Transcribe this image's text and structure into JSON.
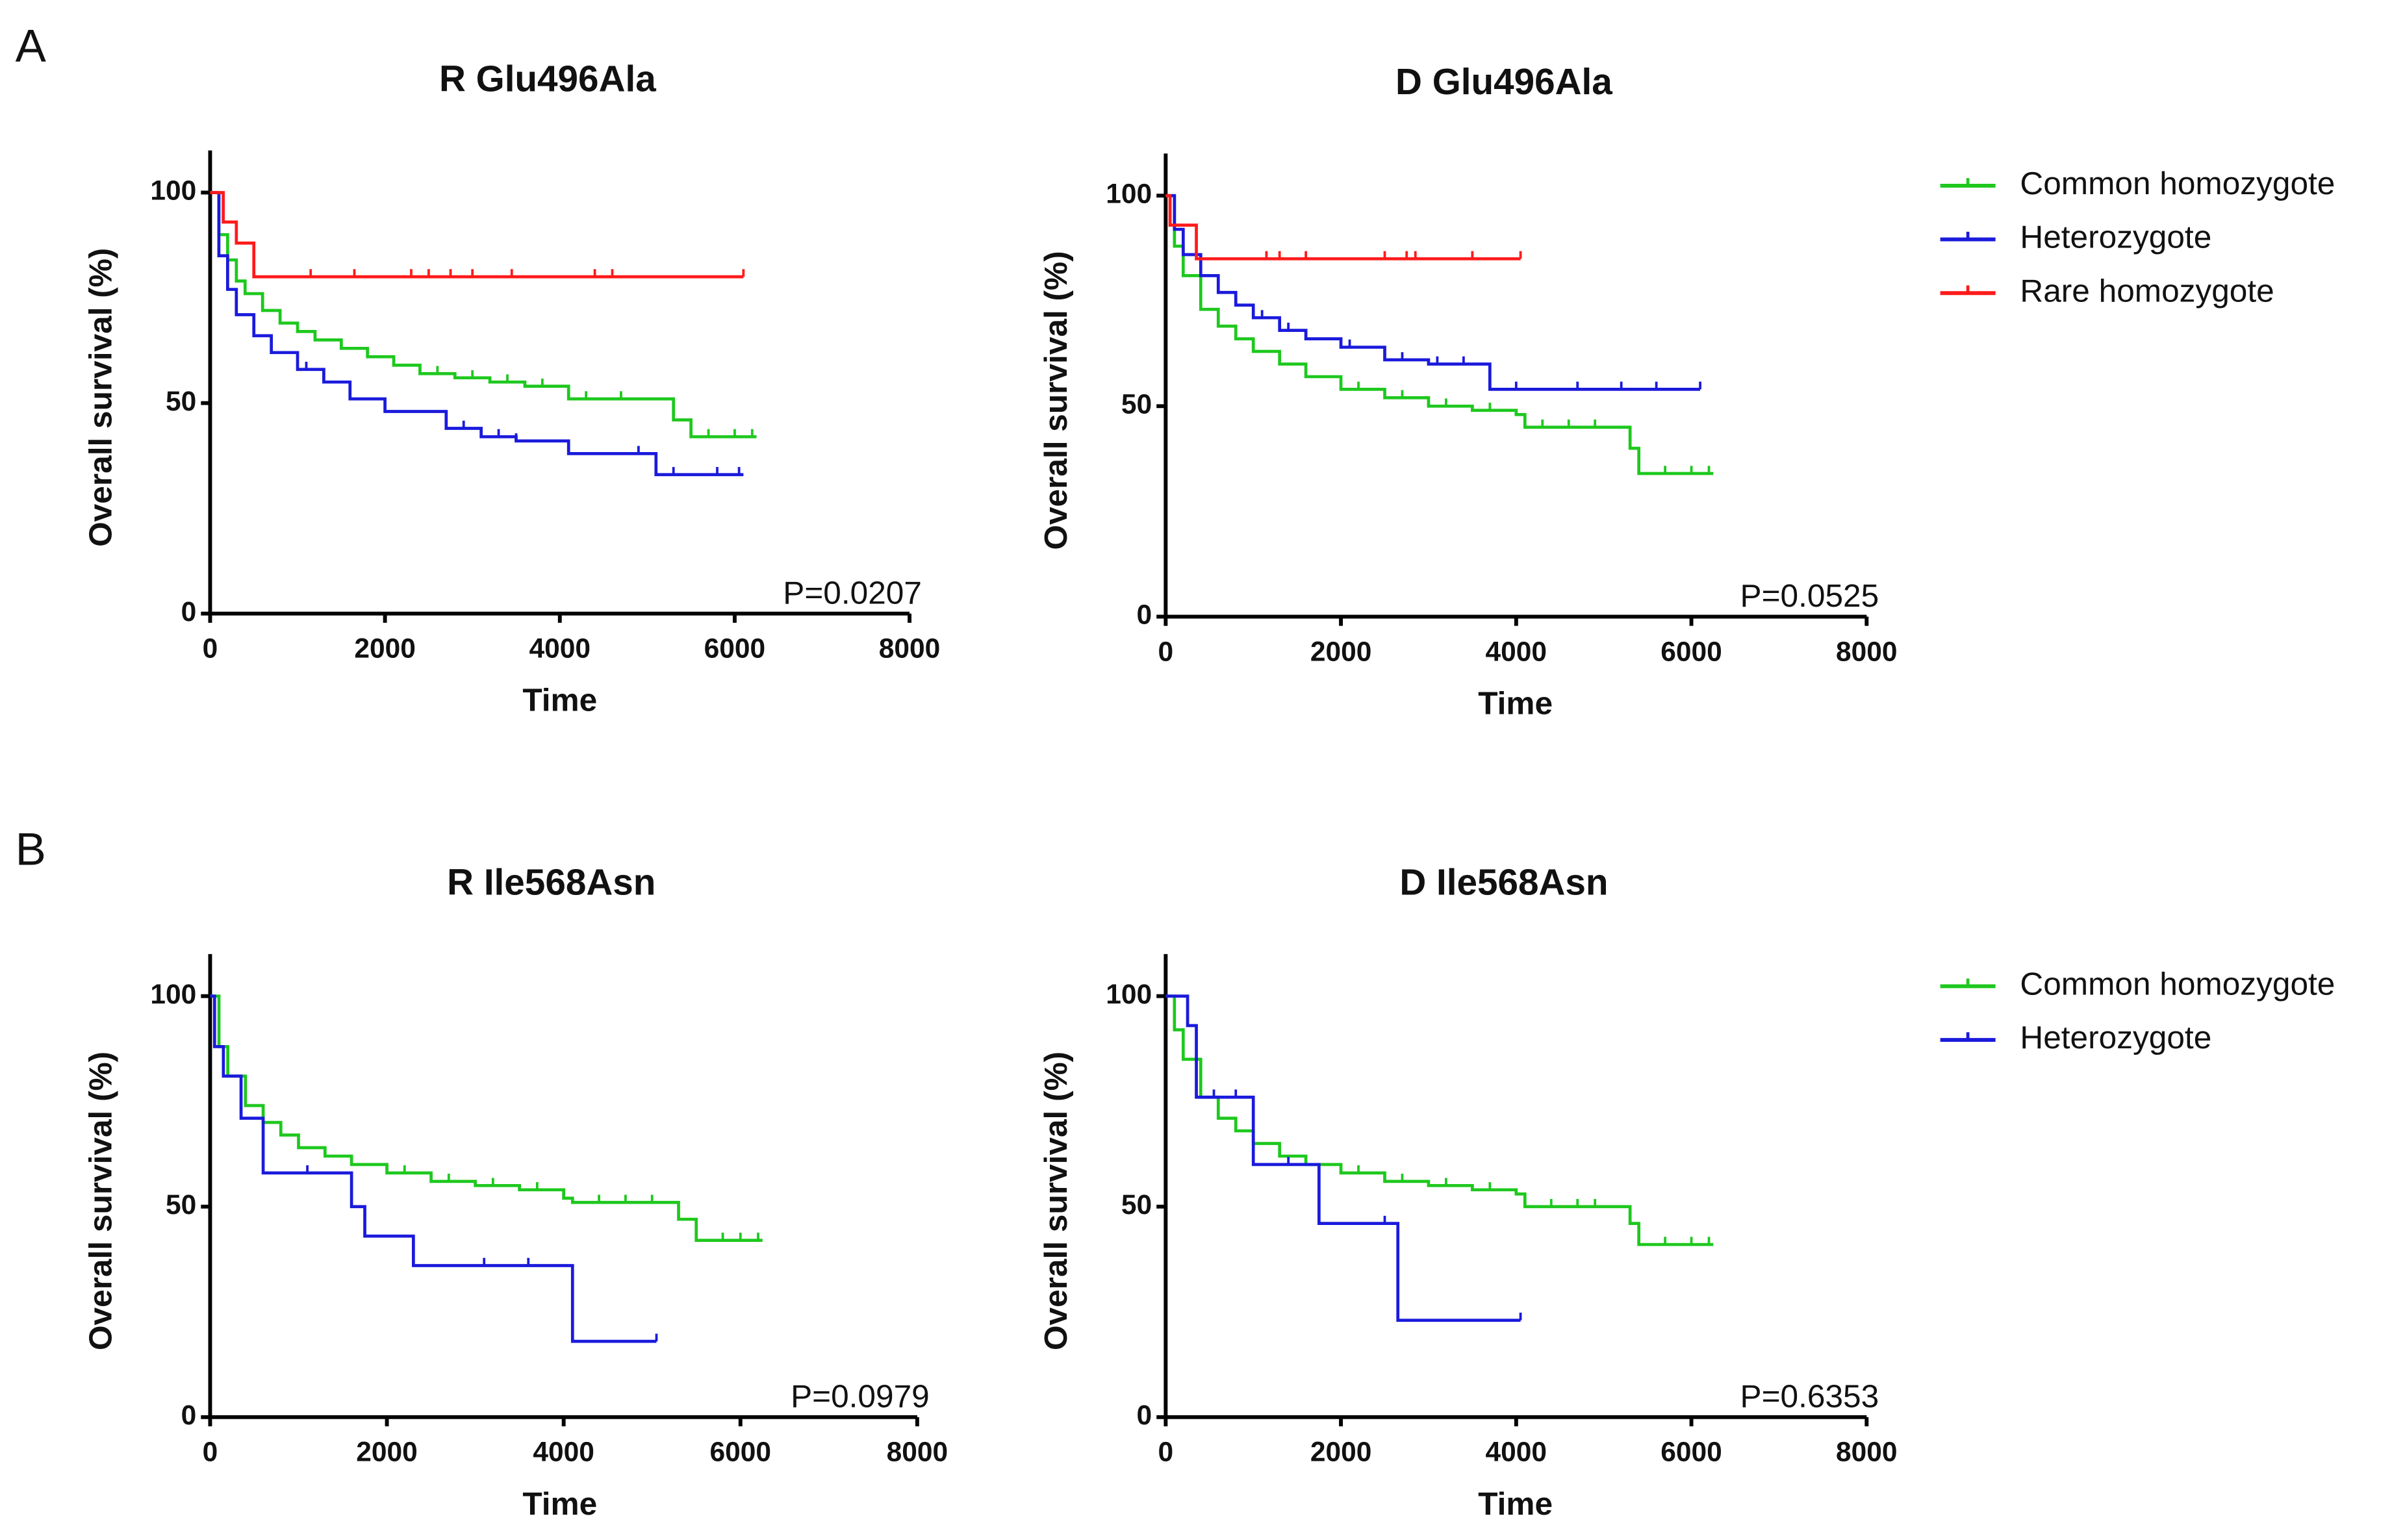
{
  "chart_data": [
    {
      "type": "line",
      "panel_label": "A",
      "title": "R Glu496Ala",
      "y_label": "Overall survival (%)",
      "x_label": "Time",
      "annotation": "P=0.0207",
      "xlim": [
        0,
        8000
      ],
      "xticks": [
        0,
        2000,
        4000,
        6000,
        8000
      ],
      "ylim": [
        0,
        110
      ],
      "yticks": [
        0,
        50,
        100
      ],
      "series": [
        {
          "color": "#1ec81e",
          "x": [
            0,
            100,
            200,
            300,
            400,
            600,
            800,
            1000,
            1200,
            1500,
            1800,
            2100,
            2400,
            2800,
            3200,
            3600,
            4100,
            4500,
            5000,
            5300,
            5500,
            6250
          ],
          "values": [
            100,
            90,
            84,
            79,
            76,
            72,
            69,
            67,
            65,
            63,
            61,
            59,
            57,
            56,
            55,
            54,
            51,
            51,
            51,
            46,
            42,
            42
          ],
          "censored": [
            2600,
            3000,
            3400,
            3800,
            4300,
            4700,
            5700,
            6000,
            6200
          ]
        },
        {
          "color": "#1a1adc",
          "x": [
            0,
            100,
            200,
            300,
            500,
            700,
            1000,
            1300,
            1600,
            2000,
            2300,
            2700,
            3100,
            3500,
            4100,
            5000,
            5100,
            6100
          ],
          "values": [
            100,
            85,
            77,
            71,
            66,
            62,
            58,
            55,
            51,
            48,
            48,
            44,
            42,
            41,
            38,
            38,
            33,
            33
          ],
          "censored": [
            1100,
            2900,
            3300,
            3500,
            4900,
            5300,
            5800,
            6050
          ]
        },
        {
          "color": "#ff1a1a",
          "x": [
            0,
            150,
            300,
            450,
            500,
            6100
          ],
          "values": [
            100,
            93,
            88,
            88,
            80,
            80
          ],
          "censored": [
            1150,
            1650,
            2300,
            2500,
            2750,
            3000,
            3450,
            4400,
            4600,
            6100
          ]
        }
      ]
    },
    {
      "type": "line",
      "title": "D Glu496Ala",
      "y_label": "Overall survival (%)",
      "x_label": "Time",
      "annotation": "P=0.0525",
      "xlim": [
        0,
        8000
      ],
      "xticks": [
        0,
        2000,
        4000,
        6000,
        8000
      ],
      "ylim": [
        0,
        110
      ],
      "yticks": [
        0,
        50,
        100
      ],
      "legend": "right",
      "series": [
        {
          "name": "Common homozygote",
          "color": "#1ec81e",
          "x": [
            0,
            100,
            200,
            400,
            600,
            800,
            1000,
            1300,
            1600,
            2000,
            2500,
            3000,
            3500,
            4000,
            4100,
            5000,
            5300,
            5400,
            6250
          ],
          "values": [
            100,
            88,
            81,
            73,
            69,
            66,
            63,
            60,
            57,
            54,
            52,
            50,
            49,
            48,
            45,
            45,
            40,
            34,
            34
          ],
          "censored": [
            2200,
            2700,
            3200,
            3700,
            4300,
            4600,
            4900,
            5700,
            6000,
            6200
          ]
        },
        {
          "name": "Heterozygote",
          "color": "#1a1adc",
          "x": [
            0,
            100,
            200,
            400,
            600,
            800,
            1000,
            1300,
            1600,
            2000,
            2500,
            3000,
            3500,
            3700,
            6100
          ],
          "values": [
            100,
            92,
            86,
            81,
            77,
            74,
            71,
            68,
            66,
            64,
            61,
            60,
            60,
            54,
            54
          ],
          "censored": [
            1100,
            1400,
            2100,
            2700,
            3100,
            3400,
            4000,
            4700,
            5200,
            5600,
            6100
          ]
        },
        {
          "name": "Rare homozygote",
          "color": "#ff1a1a",
          "x": [
            0,
            50,
            350,
            4050
          ],
          "values": [
            100,
            93,
            85,
            85
          ],
          "censored": [
            1150,
            1300,
            1600,
            2500,
            2750,
            2850,
            3500,
            4050
          ]
        }
      ]
    },
    {
      "type": "line",
      "panel_label": "B",
      "title": "R Ile568Asn",
      "y_label": "Overall survival (%)",
      "x_label": "Time",
      "annotation": "P=0.0979",
      "xlim": [
        0,
        8000
      ],
      "xticks": [
        0,
        2000,
        4000,
        6000,
        8000
      ],
      "ylim": [
        0,
        110
      ],
      "yticks": [
        0,
        50,
        100
      ],
      "series": [
        {
          "color": "#1ec81e",
          "x": [
            0,
            100,
            200,
            400,
            600,
            800,
            1000,
            1300,
            1600,
            2000,
            2500,
            3000,
            3500,
            4000,
            4100,
            5000,
            5300,
            5500,
            6250
          ],
          "values": [
            100,
            88,
            81,
            74,
            70,
            67,
            64,
            62,
            60,
            58,
            56,
            55,
            54,
            52,
            51,
            51,
            47,
            42,
            42
          ],
          "censored": [
            2200,
            2700,
            3200,
            3700,
            4400,
            4700,
            5000,
            5800,
            6000,
            6200
          ]
        },
        {
          "color": "#1a1adc",
          "x": [
            0,
            50,
            150,
            350,
            600,
            1600,
            1750,
            2300,
            4100,
            5050
          ],
          "values": [
            100,
            88,
            81,
            71,
            58,
            50,
            43,
            36,
            18,
            18
          ],
          "censored": [
            1100,
            3100,
            3600,
            5050
          ]
        }
      ]
    },
    {
      "type": "line",
      "title": "D Ile568Asn",
      "y_label": "Overall survival (%)",
      "x_label": "Time",
      "annotation": "P=0.6353",
      "xlim": [
        0,
        8000
      ],
      "xticks": [
        0,
        2000,
        4000,
        6000,
        8000
      ],
      "ylim": [
        0,
        110
      ],
      "yticks": [
        0,
        50,
        100
      ],
      "legend": "right",
      "series": [
        {
          "name": "Common homozygote",
          "color": "#1ec81e",
          "x": [
            0,
            100,
            200,
            400,
            600,
            800,
            1000,
            1300,
            1600,
            2000,
            2500,
            3000,
            3500,
            4000,
            4100,
            5000,
            5300,
            5400,
            6250
          ],
          "values": [
            100,
            92,
            85,
            76,
            71,
            68,
            65,
            62,
            60,
            58,
            56,
            55,
            54,
            53,
            50,
            50,
            46,
            41,
            41
          ],
          "censored": [
            2200,
            2700,
            3200,
            3700,
            4400,
            4700,
            4900,
            5700,
            6000,
            6200
          ]
        },
        {
          "name": "Heterozygote",
          "color": "#1a1adc",
          "x": [
            0,
            250,
            350,
            950,
            1000,
            1750,
            2650,
            4050
          ],
          "values": [
            100,
            93,
            76,
            76,
            60,
            46,
            23,
            23
          ],
          "censored": [
            550,
            800,
            1400,
            2500,
            4050
          ]
        }
      ]
    }
  ]
}
